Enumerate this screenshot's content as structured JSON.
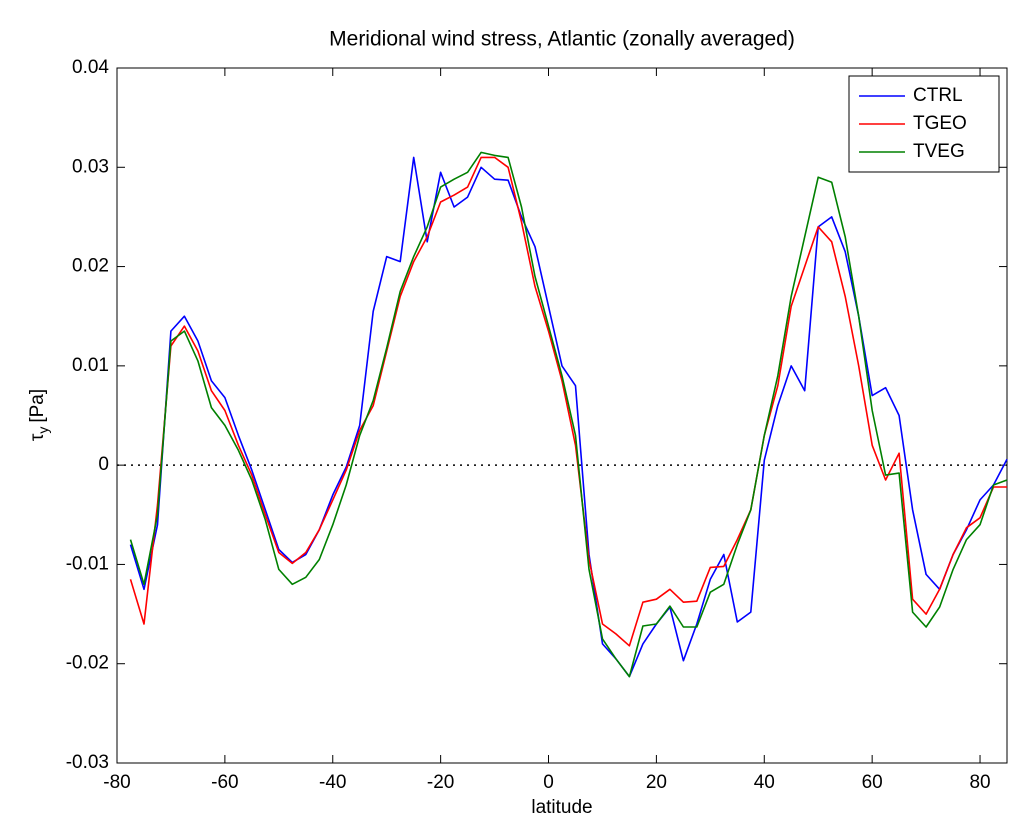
{
  "chart_data": {
    "type": "line",
    "title": "Meridional wind stress, Atlantic (zonally averaged)",
    "xlabel": "latitude",
    "ylabel_symbol": "τ",
    "ylabel_subscript": "y",
    "ylabel_unit": "[Pa]",
    "x": [
      -77.5,
      -75,
      -72.5,
      -70,
      -67.5,
      -65,
      -62.5,
      -60,
      -57.5,
      -55,
      -52.5,
      -50,
      -47.5,
      -45,
      -42.5,
      -40,
      -37.5,
      -35,
      -32.5,
      -30,
      -27.5,
      -25,
      -22.5,
      -20,
      -17.5,
      -15,
      -12.5,
      -10,
      -7.5,
      -5,
      -2.5,
      0,
      2.5,
      5,
      7.5,
      10,
      12.5,
      15,
      17.5,
      20,
      22.5,
      25,
      27.5,
      30,
      32.5,
      35,
      37.5,
      40,
      42.5,
      45,
      47.5,
      50,
      52.5,
      55,
      57.5,
      60,
      62.5,
      65,
      67.5,
      70,
      72.5,
      75,
      77.5,
      80,
      82.5,
      85
    ],
    "series": [
      {
        "name": "CTRL",
        "color": "#0000ff",
        "values": [
          -0.008,
          -0.0125,
          -0.006,
          0.0135,
          0.015,
          0.0125,
          0.0085,
          0.0068,
          0.003,
          -0.0005,
          -0.0045,
          -0.0085,
          -0.0098,
          -0.009,
          -0.0065,
          -0.003,
          -0.0002,
          0.004,
          0.0155,
          0.021,
          0.0205,
          0.031,
          0.0225,
          0.0295,
          0.026,
          0.027,
          0.03,
          0.0288,
          0.0287,
          0.025,
          0.022,
          0.016,
          0.01,
          0.008,
          -0.009,
          -0.018,
          -0.0195,
          -0.0213,
          -0.018,
          -0.016,
          -0.0143,
          -0.0197,
          -0.016,
          -0.0115,
          -0.009,
          -0.0158,
          -0.0148,
          0.0005,
          0.006,
          0.01,
          0.0075,
          0.024,
          0.025,
          0.0215,
          0.015,
          0.007,
          0.0078,
          0.005,
          -0.0045,
          -0.011,
          -0.0125,
          -0.009,
          -0.0065,
          -0.0035,
          -0.002,
          0.0006
        ]
      },
      {
        "name": "TGEO",
        "color": "#ff0000",
        "values": [
          -0.0115,
          -0.016,
          -0.004,
          0.012,
          0.014,
          0.0115,
          0.0075,
          0.0055,
          0.002,
          -0.001,
          -0.005,
          -0.0088,
          -0.0099,
          -0.0088,
          -0.0065,
          -0.0035,
          -0.0005,
          0.0035,
          0.006,
          0.0115,
          0.017,
          0.0205,
          0.023,
          0.0265,
          0.0272,
          0.028,
          0.031,
          0.031,
          0.03,
          0.0245,
          0.018,
          0.0135,
          0.0085,
          0.002,
          -0.0095,
          -0.016,
          -0.017,
          -0.0182,
          -0.0138,
          -0.0135,
          -0.0125,
          -0.0138,
          -0.0137,
          -0.0103,
          -0.0102,
          -0.0075,
          -0.0045,
          0.003,
          0.008,
          0.016,
          0.02,
          0.024,
          0.0225,
          0.017,
          0.01,
          0.002,
          -0.0015,
          0.0012,
          -0.0135,
          -0.015,
          -0.0125,
          -0.009,
          -0.0063,
          -0.0053,
          -0.0022,
          -0.0022
        ]
      },
      {
        "name": "TVEG",
        "color": "#008000",
        "values": [
          -0.0075,
          -0.012,
          -0.005,
          0.0125,
          0.0135,
          0.0105,
          0.0058,
          0.004,
          0.0015,
          -0.0015,
          -0.0055,
          -0.0105,
          -0.012,
          -0.0113,
          -0.0095,
          -0.006,
          -0.002,
          0.003,
          0.0065,
          0.0118,
          0.0175,
          0.021,
          0.024,
          0.028,
          0.0288,
          0.0295,
          0.0315,
          0.0312,
          0.031,
          0.026,
          0.019,
          0.014,
          0.009,
          0.003,
          -0.0105,
          -0.0175,
          -0.0195,
          -0.0213,
          -0.0162,
          -0.016,
          -0.0142,
          -0.0163,
          -0.0163,
          -0.0128,
          -0.012,
          -0.008,
          -0.0045,
          0.003,
          0.009,
          0.017,
          0.023,
          0.029,
          0.0285,
          0.023,
          0.015,
          0.0055,
          -0.001,
          -0.0008,
          -0.0148,
          -0.0163,
          -0.0143,
          -0.0105,
          -0.0075,
          -0.006,
          -0.002,
          -0.0015
        ]
      }
    ],
    "xlim": [
      -80,
      85
    ],
    "xticks": [
      -80,
      -60,
      -40,
      -20,
      0,
      20,
      40,
      60,
      80
    ],
    "ylim": [
      -0.03,
      0.04
    ],
    "yticks": [
      -0.03,
      -0.02,
      -0.01,
      0,
      0.01,
      0.02,
      0.03,
      0.04
    ],
    "reference_line": 0,
    "legend": "top-right"
  }
}
